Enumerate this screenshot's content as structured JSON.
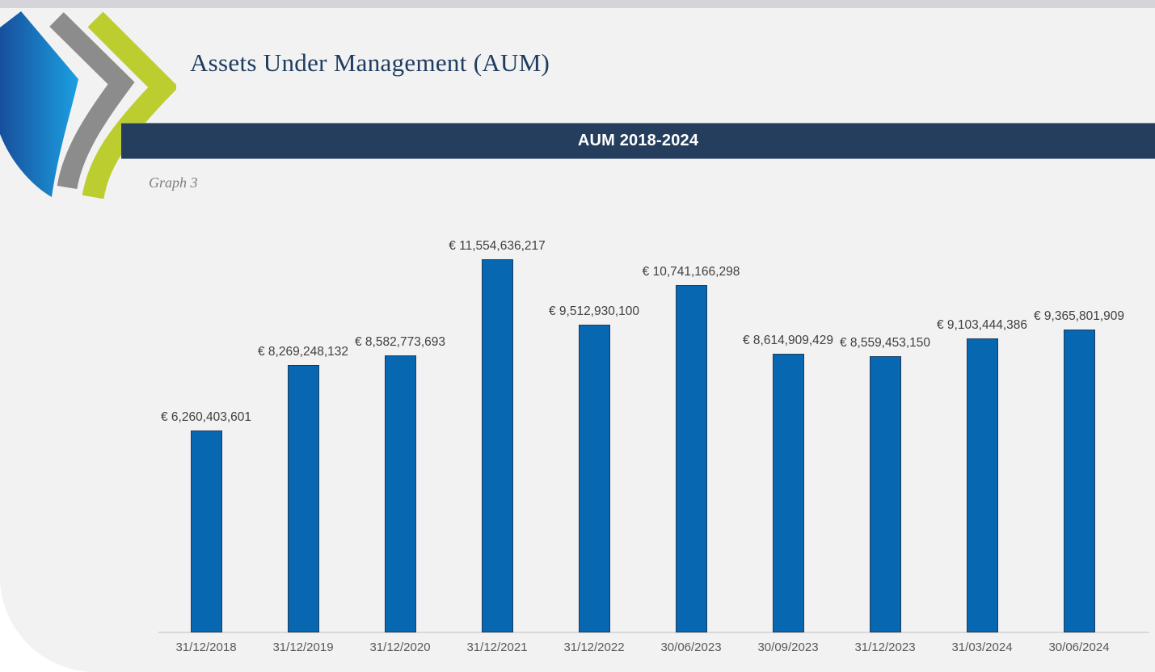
{
  "page": {
    "title": "Assets Under Management (AUM)",
    "graph_caption": "Graph 3",
    "banner": {
      "text": "AUM 2018-2024",
      "bg_color": "#263E5D",
      "text_color": "#FFFFFF"
    }
  },
  "logo": {
    "description": "three-curved-chevrons-logo",
    "colors": {
      "blue_start": "#174F9C",
      "blue_end": "#1BA0E1",
      "gray": "#8C8C8C",
      "green": "#BCCE2F"
    }
  },
  "chart_data": {
    "type": "bar",
    "title": "AUM 2018-2024",
    "categories": [
      "31/12/2018",
      "31/12/2019",
      "31/12/2020",
      "31/12/2021",
      "31/12/2022",
      "30/06/2023",
      "30/09/2023",
      "31/12/2023",
      "31/03/2024",
      "30/06/2024"
    ],
    "values": [
      6260403601,
      8269248132,
      8582773693,
      11554636217,
      9512930100,
      10741166298,
      8614909429,
      8559453150,
      9103444386,
      9365801909
    ],
    "labels": [
      "€ 6,260,403,601",
      "€ 8,269,248,132",
      "€ 8,582,773,693",
      "€ 11,554,636,217",
      "€ 9,512,930,100",
      "€ 10,741,166,298",
      "€ 8,614,909,429",
      "€ 8,559,453,150",
      "€ 9,103,444,386",
      "€ 9,365,801,909"
    ],
    "xlabel": "",
    "ylabel": "",
    "ylim": [
      0,
      12900000000
    ],
    "grid": false,
    "legend": "none",
    "data_labels": true,
    "bar_color": "#0768B1",
    "bar_border_color": "#1F3A5C",
    "value_label_color": "#404040",
    "axis_label_color": "#595959",
    "axis_line_color": "#D9D9D9"
  }
}
